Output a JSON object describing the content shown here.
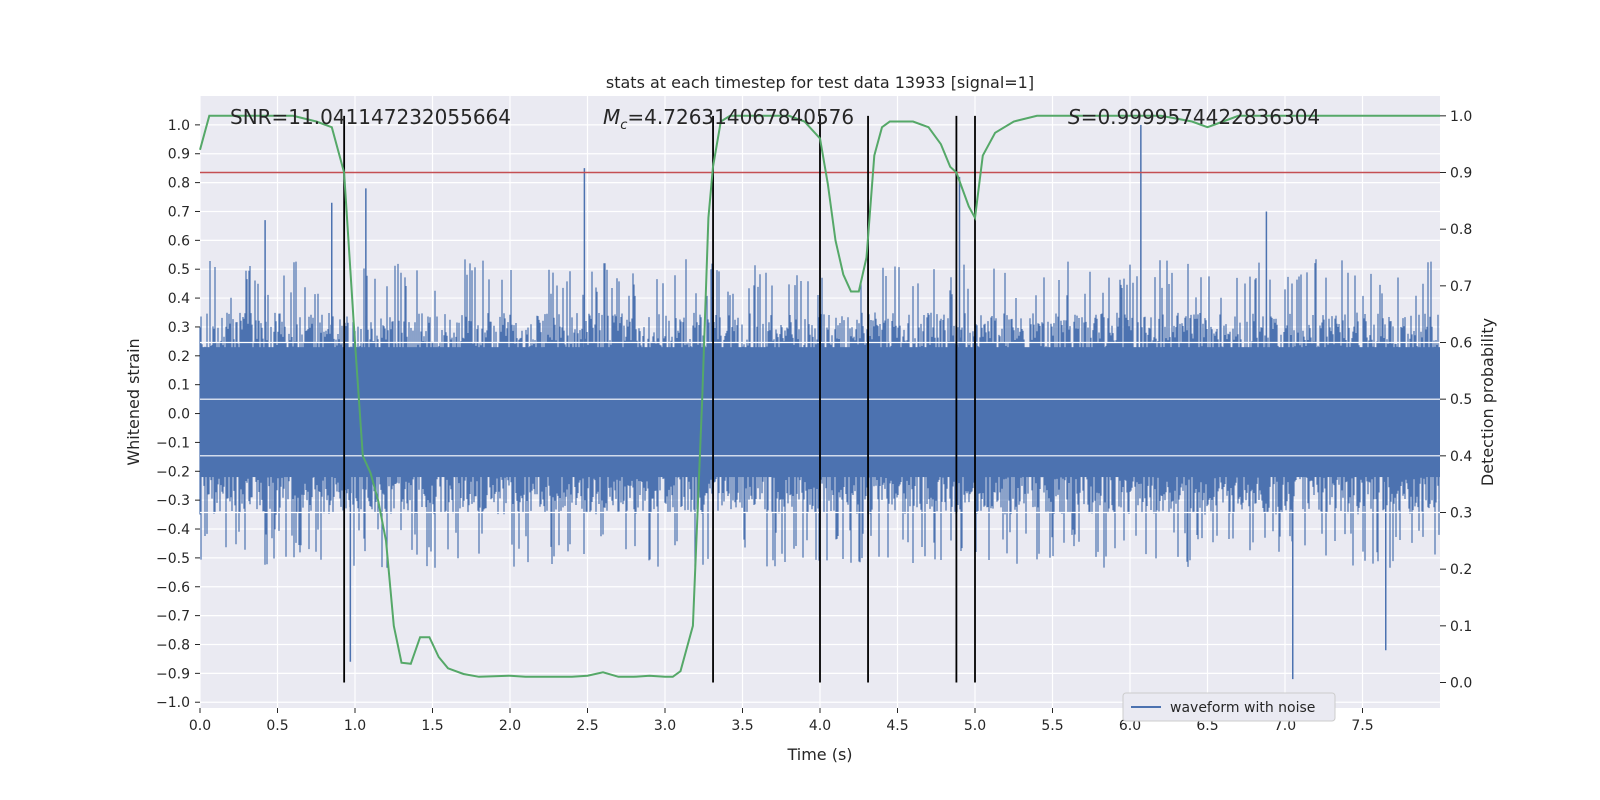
{
  "chart_data": {
    "type": "line",
    "title": "stats at each timestep for test data 13933 [signal=1]",
    "xlabel": "Time (s)",
    "ylabel": "Whitened strain",
    "y2label": "Detection probability",
    "xlim": [
      0,
      8
    ],
    "ylim": [
      -1.02,
      1.1
    ],
    "y2lim": [
      -0.045,
      1.035
    ],
    "xticks": [
      0.0,
      0.5,
      1.0,
      1.5,
      2.0,
      2.5,
      3.0,
      3.5,
      4.0,
      4.5,
      5.0,
      5.5,
      6.0,
      6.5,
      7.0,
      7.5
    ],
    "xtick_labels": [
      "0.0",
      "0.5",
      "1.0",
      "1.5",
      "2.0",
      "2.5",
      "3.0",
      "3.5",
      "4.0",
      "4.5",
      "5.0",
      "5.5",
      "6.0",
      "6.5",
      "7.0",
      "7.5"
    ],
    "yticks": [
      1.0,
      0.9,
      0.8,
      0.7,
      0.6,
      0.5,
      0.4,
      0.3,
      0.2,
      0.1,
      0.0,
      -0.1,
      -0.2,
      -0.3,
      -0.4,
      -0.5,
      -0.6,
      -0.7,
      -0.8,
      -0.9,
      -1.0
    ],
    "ytick_labels": [
      "1.0",
      "0.9",
      "0.8",
      "0.7",
      "0.6",
      "0.5",
      "0.4",
      "0.3",
      "0.2",
      "0.1",
      "0.0",
      "−0.1",
      "−0.2",
      "−0.3",
      "−0.4",
      "−0.5",
      "−0.6",
      "−0.7",
      "−0.8",
      "−0.9",
      "−1.0"
    ],
    "y2ticks": [
      1.0,
      0.9,
      0.8,
      0.7,
      0.6,
      0.5,
      0.4,
      0.3,
      0.2,
      0.1,
      0.0
    ],
    "y2tick_labels": [
      "1.0",
      "0.9",
      "0.8",
      "0.7",
      "0.6",
      "0.5",
      "0.4",
      "0.3",
      "0.2",
      "0.1",
      "0.0"
    ],
    "annotations": {
      "snr": "SNR=11.041147232055664",
      "mc_symbol": "M",
      "mc_sub": "c",
      "mc_value": "=4.726314067840576",
      "s_symbol": "S",
      "s_value": "=0.9999574422836304"
    },
    "legend": {
      "label": "waveform with noise",
      "position": "lower-right"
    },
    "threshold": {
      "value": 0.9,
      "axis": "y2",
      "color": "#c44e52"
    },
    "vertical_lines": [
      0.93,
      3.31,
      4.0,
      4.31,
      4.88,
      5.0
    ],
    "vertical_line_range_y2": [
      0.0,
      1.0
    ],
    "waveform": {
      "name": "waveform with noise",
      "color": "#4c72b0",
      "x_range": [
        0.0,
        8.0
      ],
      "typical_envelope": [
        -0.35,
        0.35
      ],
      "peaks": [
        {
          "x": 2.48,
          "y": 0.85
        },
        {
          "x": 6.07,
          "y": 1.0
        },
        {
          "x": 7.05,
          "y": -0.92
        },
        {
          "x": 0.97,
          "y": -0.86
        },
        {
          "x": 0.85,
          "y": 0.73
        },
        {
          "x": 1.07,
          "y": 0.78
        },
        {
          "x": 4.9,
          "y": 0.82
        },
        {
          "x": 7.65,
          "y": -0.82
        },
        {
          "x": 0.42,
          "y": 0.67
        },
        {
          "x": 6.88,
          "y": 0.7
        }
      ]
    },
    "series": [
      {
        "name": "Detection probability",
        "axis": "y2",
        "color": "#55a868",
        "x": [
          0.0,
          0.06,
          0.2,
          0.4,
          0.6,
          0.75,
          0.85,
          0.93,
          1.0,
          1.05,
          1.1,
          1.15,
          1.2,
          1.25,
          1.3,
          1.36,
          1.42,
          1.48,
          1.54,
          1.6,
          1.7,
          1.8,
          2.0,
          2.1,
          2.2,
          2.3,
          2.4,
          2.5,
          2.6,
          2.7,
          2.8,
          2.9,
          3.0,
          3.05,
          3.1,
          3.18,
          3.24,
          3.28,
          3.31,
          3.36,
          3.42,
          3.5,
          3.6,
          3.7,
          3.8,
          3.9,
          4.0,
          4.05,
          4.1,
          4.15,
          4.2,
          4.25,
          4.3,
          4.35,
          4.4,
          4.45,
          4.5,
          4.6,
          4.7,
          4.78,
          4.84,
          4.88,
          4.92,
          4.96,
          5.0,
          5.05,
          5.13,
          5.25,
          5.4,
          5.6,
          6.0,
          6.2,
          6.4,
          6.5,
          6.6,
          6.7,
          6.9,
          7.2,
          7.5,
          8.0
        ],
        "values": [
          0.94,
          1.0,
          1.0,
          1.0,
          1.0,
          0.99,
          0.98,
          0.9,
          0.6,
          0.4,
          0.37,
          0.32,
          0.25,
          0.1,
          0.035,
          0.033,
          0.08,
          0.08,
          0.045,
          0.025,
          0.015,
          0.01,
          0.012,
          0.01,
          0.01,
          0.01,
          0.01,
          0.012,
          0.018,
          0.01,
          0.01,
          0.012,
          0.01,
          0.01,
          0.02,
          0.1,
          0.5,
          0.82,
          0.91,
          0.99,
          1.0,
          1.0,
          1.0,
          1.0,
          1.0,
          0.99,
          0.96,
          0.88,
          0.78,
          0.72,
          0.69,
          0.69,
          0.75,
          0.93,
          0.98,
          0.99,
          0.99,
          0.99,
          0.98,
          0.95,
          0.91,
          0.9,
          0.87,
          0.84,
          0.82,
          0.93,
          0.97,
          0.99,
          1.0,
          1.0,
          1.0,
          1.0,
          0.99,
          0.98,
          0.99,
          1.0,
          1.0,
          1.0,
          1.0,
          1.0
        ]
      }
    ]
  }
}
